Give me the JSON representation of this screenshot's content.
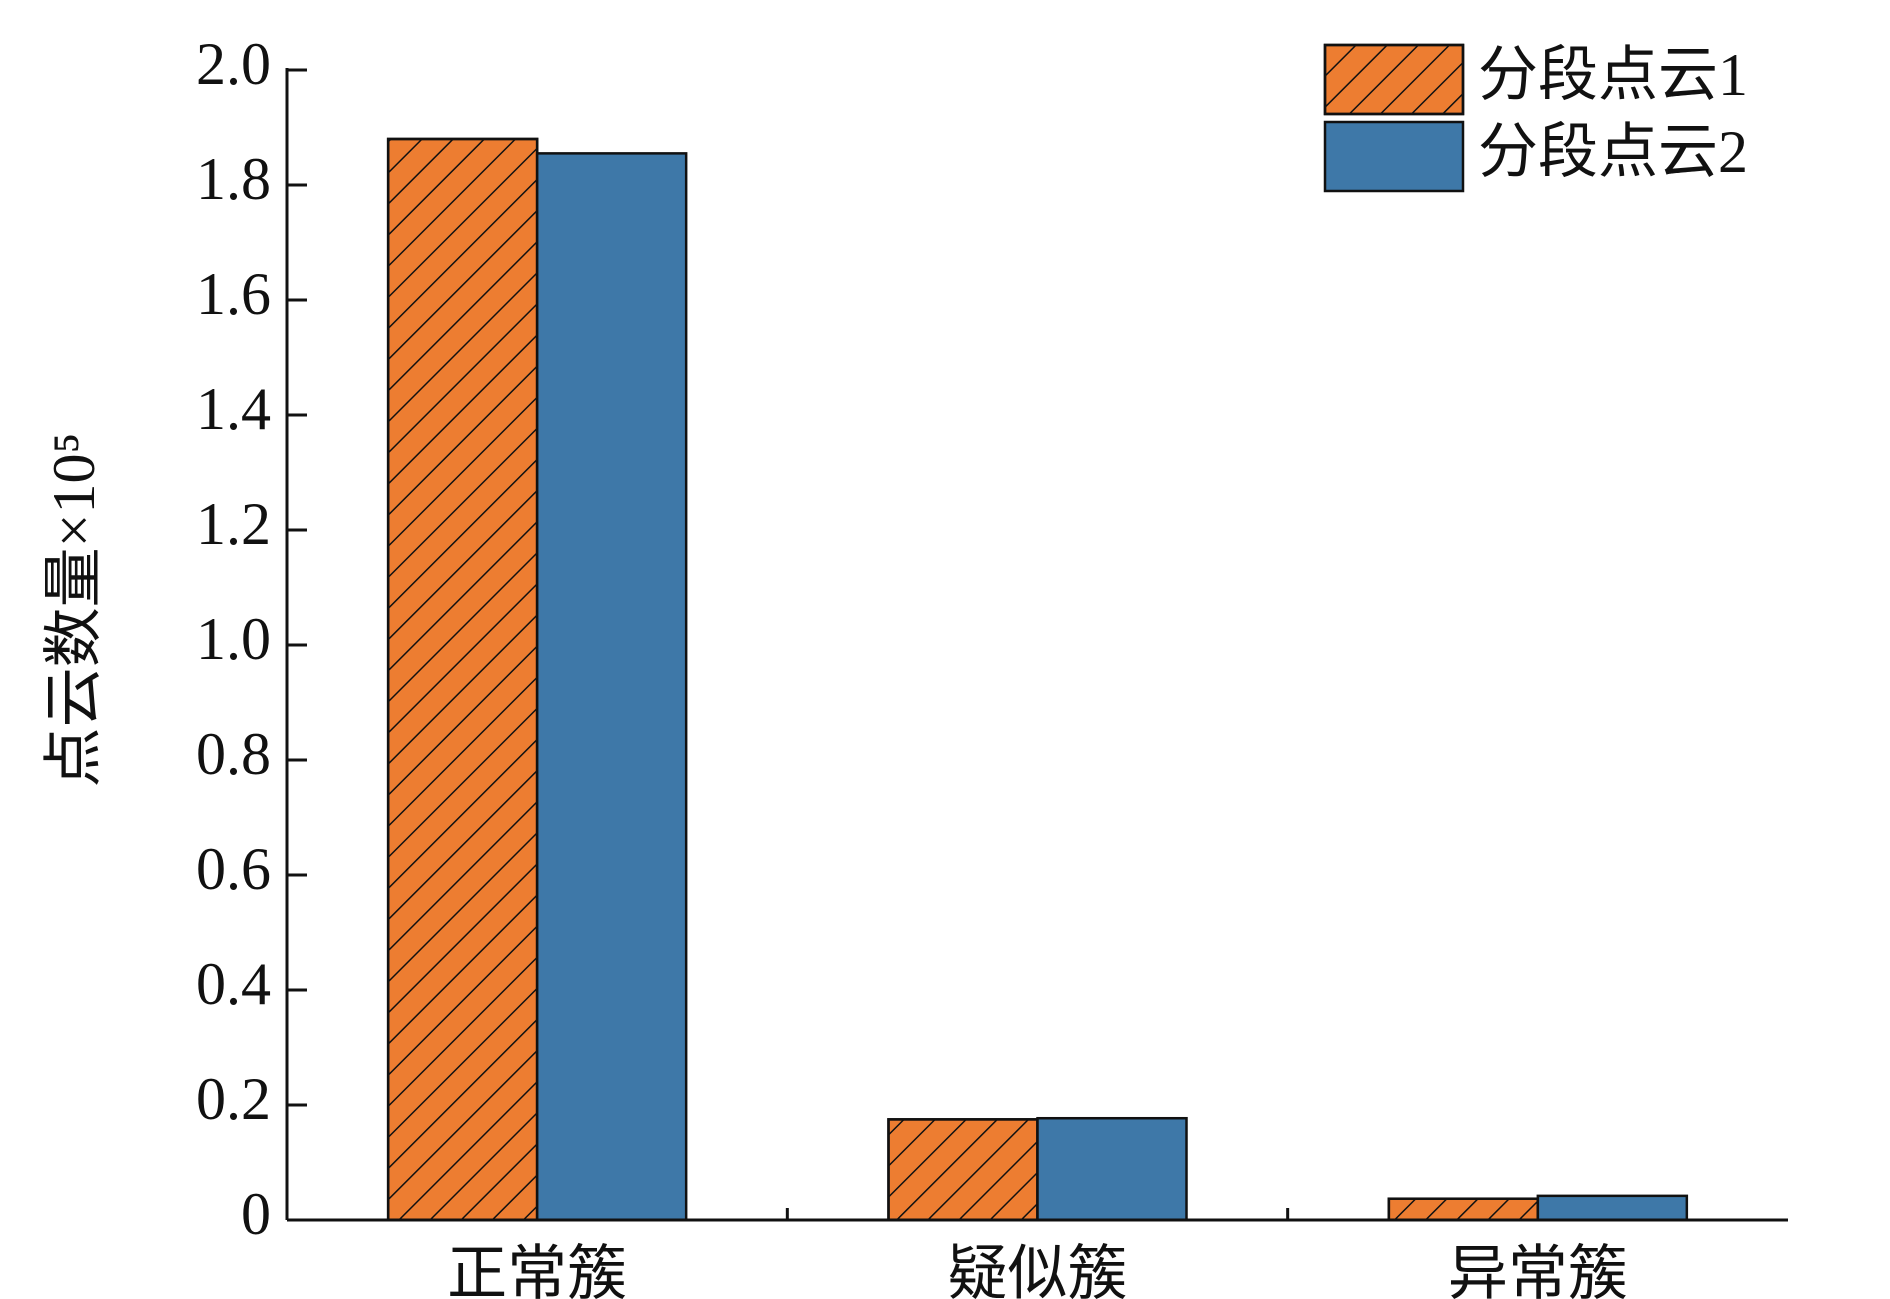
{
  "chart_data": {
    "type": "bar",
    "ylabel": "点云数量×10⁵",
    "categories": [
      "正常簇",
      "疑似簇",
      "异常簇"
    ],
    "series": [
      {
        "name": "分段点云1",
        "color": "#ed7d31",
        "hatch": true,
        "values": [
          1.88,
          0.175,
          0.037
        ]
      },
      {
        "name": "分段点云2",
        "color": "#3e78a8",
        "hatch": false,
        "values": [
          1.855,
          0.177,
          0.042
        ]
      }
    ],
    "ylim": [
      0,
      2
    ],
    "yticks": [
      0,
      0.2,
      0.4,
      0.6,
      0.8,
      {
        "value": 1,
        "label": "1.0"
      },
      1.2,
      1.4,
      1.6,
      1.8,
      {
        "value": 2,
        "label": "2.0"
      }
    ],
    "legend": "upper right",
    "grid": false
  }
}
